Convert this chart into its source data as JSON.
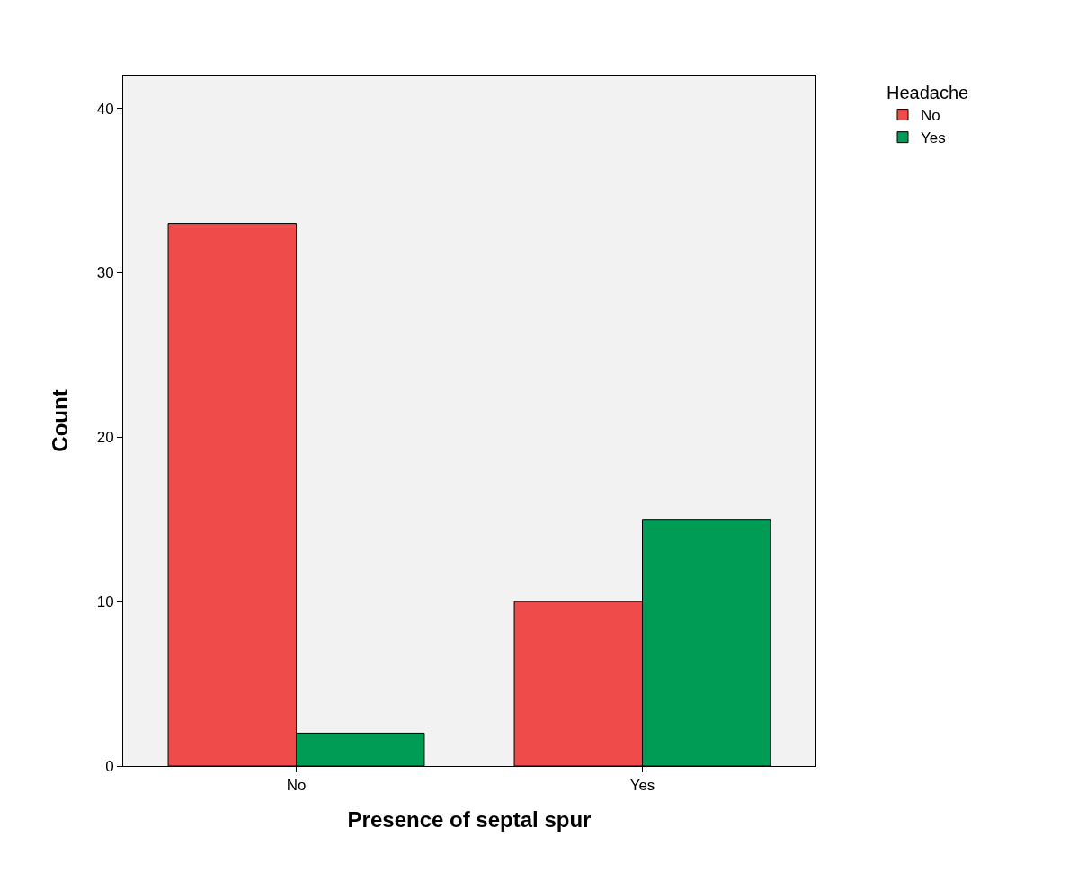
{
  "chart_data": {
    "type": "bar",
    "xlabel": "Presence of septal spur",
    "ylabel": "Count",
    "legend_title": "Headache",
    "categories": [
      "No",
      "Yes"
    ],
    "series": [
      {
        "name": "No",
        "color": "#f04b4b",
        "values": [
          33,
          10
        ]
      },
      {
        "name": "Yes",
        "color": "#009b55",
        "values": [
          2,
          15
        ]
      }
    ],
    "ylim": [
      0,
      42
    ],
    "yticks": [
      0,
      10,
      20,
      30,
      40
    ],
    "legend": "top right"
  }
}
